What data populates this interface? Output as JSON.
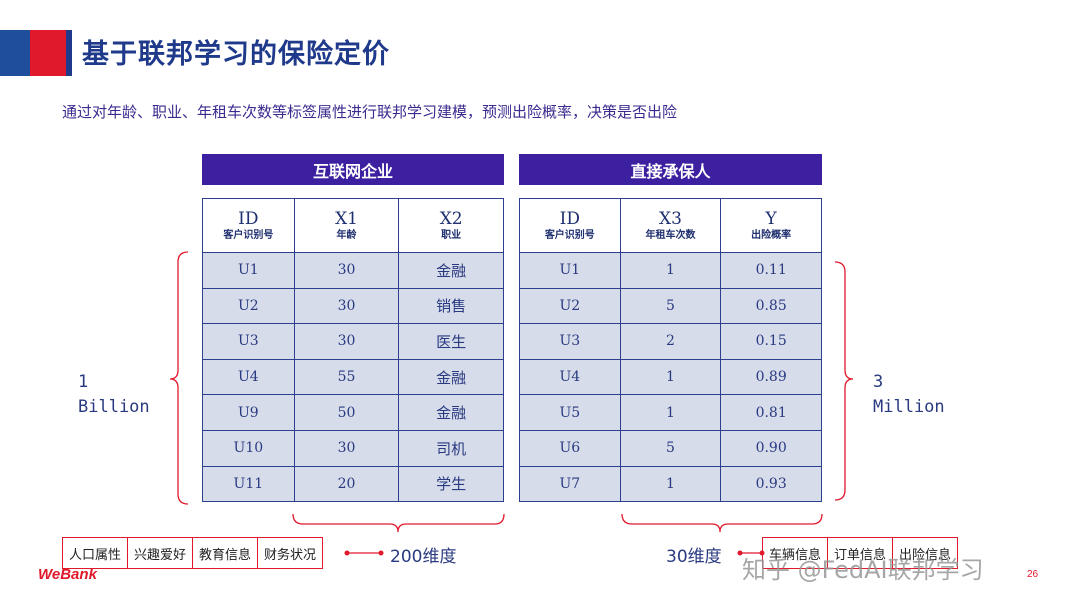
{
  "header": {
    "title": "基于联邦学习的保险定价",
    "subtitle": "通过对年龄、职业、年租车次数等标签属性进行联邦学习建模，预测出险概率，决策是否出险"
  },
  "left_table": {
    "banner": "互联网企业",
    "columns": [
      {
        "main": "ID",
        "sub": "客户识别号"
      },
      {
        "main": "X1",
        "sub": "年龄"
      },
      {
        "main": "X2",
        "sub": "职业"
      }
    ],
    "rows": [
      [
        "U1",
        "30",
        "金融"
      ],
      [
        "U2",
        "30",
        "销售"
      ],
      [
        "U3",
        "30",
        "医生"
      ],
      [
        "U4",
        "55",
        "金融"
      ],
      [
        "U9",
        "50",
        "金融"
      ],
      [
        "U10",
        "30",
        "司机"
      ],
      [
        "U11",
        "20",
        "学生"
      ]
    ],
    "side_label_line1": "1",
    "side_label_line2": "Billion",
    "dimension_label": "200维度",
    "tags": [
      "人口属性",
      "兴趣爱好",
      "教育信息",
      "财务状况"
    ]
  },
  "right_table": {
    "banner": "直接承保人",
    "columns": [
      {
        "main": "ID",
        "sub": "客户识别号"
      },
      {
        "main": "X3",
        "sub": "年租车次数"
      },
      {
        "main": "Y",
        "sub": "出险概率"
      }
    ],
    "rows": [
      [
        "U1",
        "1",
        "0.11"
      ],
      [
        "U2",
        "5",
        "0.85"
      ],
      [
        "U3",
        "2",
        "0.15"
      ],
      [
        "U4",
        "1",
        "0.89"
      ],
      [
        "U5",
        "1",
        "0.81"
      ],
      [
        "U6",
        "5",
        "0.90"
      ],
      [
        "U7",
        "1",
        "0.93"
      ]
    ],
    "side_label_line1": "3",
    "side_label_line2": "Million",
    "dimension_label": "30维度",
    "tags": [
      "车辆信息",
      "订单信息",
      "出险信息"
    ]
  },
  "footer": {
    "logo": "WeBank",
    "watermark": "知乎 @FedAI联邦学习",
    "page_number": "26"
  },
  "colors": {
    "title": "#1f3a8a",
    "banner": "#3d20a0",
    "cell_fill": "#d6dcea",
    "accent_red": "#e0192c",
    "accent_blue": "#1f4e9c"
  }
}
